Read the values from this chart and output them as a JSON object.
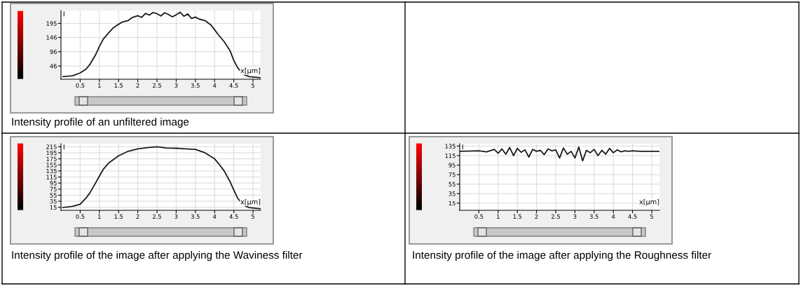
{
  "chart_data": [
    {
      "type": "line",
      "title": "Intensity profile of an unfiltered image",
      "xlabel": "x[µm]",
      "ylabel": "I",
      "color": "#1a1a1a",
      "grid": true,
      "xlim": [
        0,
        5.2
      ],
      "xticks": [
        0.5,
        1,
        1.5,
        2,
        2.5,
        3,
        3.5,
        4,
        4.5,
        5
      ],
      "ylim": [
        0,
        240
      ],
      "yticks": [
        46,
        96,
        146,
        195
      ],
      "x": [
        0.05,
        0.3,
        0.5,
        0.65,
        0.75,
        0.9,
        1.0,
        1.1,
        1.25,
        1.35,
        1.5,
        1.6,
        1.75,
        1.85,
        2.0,
        2.1,
        2.2,
        2.3,
        2.4,
        2.5,
        2.6,
        2.7,
        2.8,
        2.9,
        3.0,
        3.1,
        3.2,
        3.3,
        3.4,
        3.5,
        3.6,
        3.75,
        3.9,
        4.0,
        4.1,
        4.25,
        4.4,
        4.5,
        4.6,
        4.75,
        4.9,
        5.2
      ],
      "values": [
        9,
        12,
        22,
        35,
        51,
        85,
        114,
        140,
        163,
        178,
        192,
        200,
        205,
        215,
        222,
        216,
        230,
        224,
        233,
        229,
        221,
        232,
        226,
        218,
        225,
        234,
        220,
        228,
        212,
        217,
        210,
        205,
        190,
        173,
        155,
        131,
        100,
        66,
        40,
        17,
        9,
        5
      ]
    },
    {
      "type": "line",
      "title": "Intensity profile of the image after applying the Waviness filter",
      "xlabel": "x[µm]",
      "ylabel": "I",
      "color": "#1a1a1a",
      "grid": true,
      "xlim": [
        0,
        5.2
      ],
      "xticks": [
        0.5,
        1,
        1.5,
        2,
        2.5,
        3,
        3.5,
        4,
        4.5,
        5
      ],
      "ylim": [
        5,
        225
      ],
      "yticks": [
        15,
        35,
        55,
        75,
        95,
        115,
        135,
        155,
        175,
        195,
        215
      ],
      "x": [
        0.05,
        0.3,
        0.5,
        0.65,
        0.75,
        0.9,
        1.0,
        1.1,
        1.25,
        1.5,
        1.75,
        2.0,
        2.25,
        2.5,
        2.75,
        3.0,
        3.25,
        3.5,
        3.75,
        4.0,
        4.1,
        4.25,
        4.4,
        4.5,
        4.6,
        4.75,
        4.9,
        5.2
      ],
      "values": [
        14,
        18,
        25,
        45,
        62,
        95,
        118,
        140,
        162,
        185,
        200,
        208,
        212,
        215,
        211,
        210,
        208,
        206,
        195,
        175,
        160,
        135,
        100,
        72,
        45,
        22,
        14,
        10
      ]
    },
    {
      "type": "line",
      "title": "Intensity profile of the image after applying the Roughness filter",
      "xlabel": "x[µm]",
      "ylabel": "I",
      "color": "#1a1a1a",
      "grid": true,
      "xlim": [
        0,
        5.2
      ],
      "xticks": [
        0.5,
        1,
        1.5,
        2,
        2.5,
        3,
        3.5,
        4,
        4.5,
        5
      ],
      "ylim": [
        0,
        140
      ],
      "yticks": [
        15,
        35,
        55,
        75,
        95,
        115,
        135
      ],
      "x": [
        0.0,
        0.5,
        0.7,
        0.9,
        1.0,
        1.1,
        1.2,
        1.3,
        1.4,
        1.5,
        1.6,
        1.7,
        1.8,
        1.9,
        2.0,
        2.1,
        2.2,
        2.3,
        2.4,
        2.5,
        2.6,
        2.7,
        2.8,
        2.9,
        3.0,
        3.1,
        3.2,
        3.3,
        3.4,
        3.5,
        3.6,
        3.7,
        3.8,
        3.9,
        4.0,
        4.1,
        4.2,
        4.3,
        4.4,
        4.5,
        4.7,
        5.2
      ],
      "values": [
        124,
        125,
        123,
        128,
        120,
        129,
        118,
        132,
        115,
        130,
        122,
        127,
        112,
        128,
        124,
        126,
        117,
        129,
        125,
        127,
        110,
        131,
        118,
        124,
        110,
        133,
        104,
        126,
        121,
        128,
        115,
        126,
        118,
        130,
        121,
        127,
        123,
        125,
        124,
        125,
        124,
        124
      ]
    }
  ]
}
